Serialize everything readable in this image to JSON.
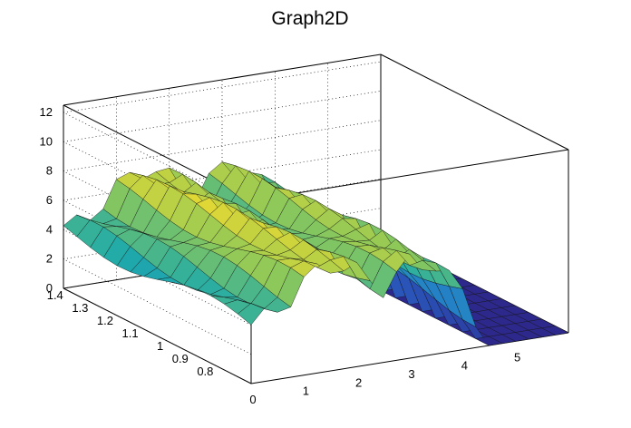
{
  "chart_data": {
    "type": "surface3d",
    "title": "Graph2D",
    "x_axis": {
      "label": "",
      "range": [
        0,
        6
      ],
      "ticks": [
        "0",
        "1",
        "2",
        "3",
        "4",
        "5"
      ]
    },
    "y_axis": {
      "label": "",
      "range": [
        0.7,
        1.45
      ],
      "ticks": [
        "0.8",
        "0.9",
        "1",
        "1.1",
        "1.2",
        "1.3",
        "1.4"
      ]
    },
    "z_axis": {
      "label": "",
      "range": [
        0,
        12.5
      ],
      "ticks": [
        "0",
        "2",
        "4",
        "6",
        "8",
        "10",
        "12"
      ]
    },
    "grid": true,
    "colormap": "viridis-like (blue to yellow)",
    "surface_profile_along_x": [
      {
        "x": 0.0,
        "z": 4.0
      },
      {
        "x": 0.5,
        "z": 4.8
      },
      {
        "x": 0.9,
        "z": 5.6
      },
      {
        "x": 1.1,
        "z": 7.0
      },
      {
        "x": 1.5,
        "z": 7.2
      },
      {
        "x": 2.0,
        "z": 6.5
      },
      {
        "x": 2.5,
        "z": 5.0
      },
      {
        "x": 3.0,
        "z": 6.6
      },
      {
        "x": 3.5,
        "z": 6.0
      },
      {
        "x": 4.0,
        "z": 4.0
      },
      {
        "x": 4.5,
        "z": 0.0
      },
      {
        "x": 5.5,
        "z": 0.0
      }
    ]
  }
}
